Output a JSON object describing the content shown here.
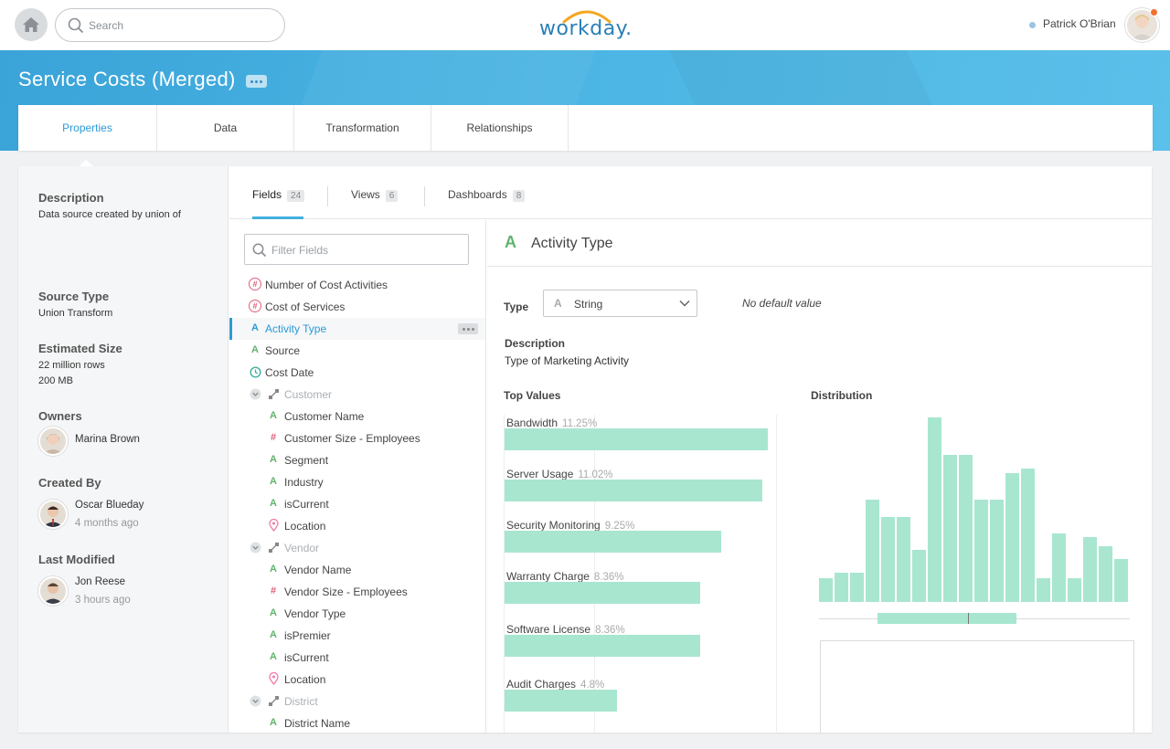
{
  "header": {
    "search_placeholder": "Search",
    "logo": "workday.",
    "user_name": "Patrick O'Brian"
  },
  "page": {
    "title": "Service Costs (Merged)"
  },
  "main_tabs": [
    {
      "label": "Properties",
      "active": true
    },
    {
      "label": "Data"
    },
    {
      "label": "Transformation"
    },
    {
      "label": "Relationships"
    }
  ],
  "properties": {
    "description_label": "Description",
    "description_value": "Data source created by union of",
    "source_type_label": "Source Type",
    "source_type_value": "Union Transform",
    "estimated_size_label": "Estimated Size",
    "estimated_rows": "22 million rows",
    "estimated_mb": "200 MB",
    "owners_label": "Owners",
    "owner_name": "Marina Brown",
    "created_by_label": "Created By",
    "created_by_name": "Oscar Blueday",
    "created_by_time": "4 months ago",
    "last_modified_label": "Last Modified",
    "last_modified_name": "Jon Reese",
    "last_modified_time": "3 hours ago"
  },
  "sub_tabs": [
    {
      "label": "Fields",
      "count": "24",
      "active": true
    },
    {
      "label": "Views",
      "count": "6"
    },
    {
      "label": "Dashboards",
      "count": "8"
    }
  ],
  "filter_placeholder": "Filter Fields",
  "fields": [
    {
      "label": "Number of Cost Activities",
      "icon": "hash-circle-icon"
    },
    {
      "label": "Cost of Services",
      "icon": "hash-circle-icon"
    },
    {
      "label": "Activity Type",
      "icon": "text-a-icon",
      "selected": true
    },
    {
      "label": "Source",
      "icon": "text-a-icon"
    },
    {
      "label": "Cost Date",
      "icon": "clock-icon"
    },
    {
      "label": "Customer",
      "icon": "link-icon",
      "group": true
    },
    {
      "label": "Customer Name",
      "icon": "text-a-icon"
    },
    {
      "label": "Customer Size - Employees",
      "icon": "hash-icon"
    },
    {
      "label": "Segment",
      "icon": "text-a-icon"
    },
    {
      "label": "Industry",
      "icon": "text-a-icon"
    },
    {
      "label": "isCurrent",
      "icon": "text-a-icon"
    },
    {
      "label": "Location",
      "icon": "location-pin-icon"
    },
    {
      "label": "Vendor",
      "icon": "link-icon",
      "group": true
    },
    {
      "label": "Vendor Name",
      "icon": "text-a-icon"
    },
    {
      "label": "Vendor Size - Employees",
      "icon": "hash-icon"
    },
    {
      "label": "Vendor Type",
      "icon": "text-a-icon"
    },
    {
      "label": "isPremier",
      "icon": "text-a-icon"
    },
    {
      "label": "isCurrent",
      "icon": "text-a-icon"
    },
    {
      "label": "Location",
      "icon": "location-pin-icon"
    },
    {
      "label": "District",
      "icon": "link-icon",
      "group": true
    },
    {
      "label": "District Name",
      "icon": "text-a-icon"
    }
  ],
  "detail": {
    "title": "Activity Type",
    "type_label": "Type",
    "type_value": "String",
    "no_default": "No default value",
    "description_label": "Description",
    "description_value": "Type of Marketing Activity",
    "top_values_label": "Top Values",
    "distribution_label": "Distribution"
  },
  "chart_data": [
    {
      "type": "bar",
      "title": "Top Values",
      "orientation": "horizontal",
      "categories": [
        "Bandwidth",
        "Server Usage",
        "Security Monitoring",
        "Warranty Charge",
        "Software License",
        "Audit Charges"
      ],
      "labels": [
        "11.25%",
        "11.02%",
        "9.25%",
        "8.36%",
        "8.36%",
        "4.8%"
      ],
      "values": [
        11.25,
        11.02,
        9.25,
        8.36,
        8.36,
        4.8
      ]
    },
    {
      "type": "bar",
      "title": "Distribution",
      "values": [
        26,
        32,
        32,
        112,
        93,
        93,
        57,
        202,
        161,
        161,
        112,
        112,
        141,
        146,
        26,
        75,
        26,
        71,
        61,
        47
      ]
    }
  ],
  "colors": {
    "accent": "#2b9ad6",
    "bar": "#a8e6d0",
    "banner": "#49b3e2",
    "notification": "#f2702e"
  }
}
